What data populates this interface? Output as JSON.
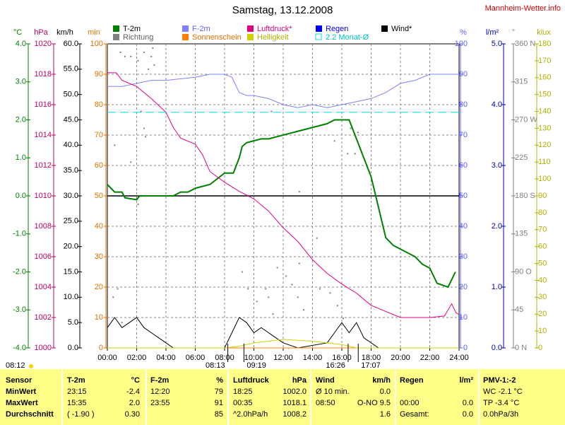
{
  "chart_data": {
    "type": "line",
    "title": "Samstag, 13.12.2008",
    "site": "Mannheim-Wetter.info",
    "xlim": [
      0,
      24
    ],
    "xticks": [
      {
        "value": 0,
        "label": "00:00"
      },
      {
        "value": 2,
        "label": "02:00"
      },
      {
        "value": 4,
        "label": "04:00"
      },
      {
        "value": 6,
        "label": "06:00"
      },
      {
        "value": 8,
        "label": "08:00"
      },
      {
        "value": 10,
        "label": "10:00"
      },
      {
        "value": 12,
        "label": "12:00"
      },
      {
        "value": 14,
        "label": "14:00"
      },
      {
        "value": 16,
        "label": "16:00"
      },
      {
        "value": 18,
        "label": "18:00"
      },
      {
        "value": 20,
        "label": "20:00"
      },
      {
        "value": 22,
        "label": "22:00"
      },
      {
        "value": 24,
        "label": "24:00"
      }
    ],
    "grid": true,
    "axes": [
      {
        "unit": "°C",
        "color": "#008000",
        "lim": [
          -4,
          4
        ],
        "ticks": [
          {
            "value": -4,
            "label": "-4.0"
          },
          {
            "value": -3,
            "label": "-3.0"
          },
          {
            "value": -2,
            "label": "-2.0"
          },
          {
            "value": -1,
            "label": "-1.0"
          },
          {
            "value": 0,
            "label": "0.0"
          },
          {
            "value": 1,
            "label": "1.0"
          },
          {
            "value": 2,
            "label": "2.0"
          },
          {
            "value": 3,
            "label": "3.0"
          },
          {
            "value": 4,
            "label": "4.0"
          }
        ]
      },
      {
        "unit": "hPa",
        "color": "#c00060",
        "lim": [
          1000,
          1020
        ],
        "ticks": [
          1000,
          1002,
          1004,
          1006,
          1008,
          1010,
          1012,
          1014,
          1016,
          1018,
          1020
        ]
      },
      {
        "unit": "km/h",
        "color": "#000000",
        "lim": [
          0,
          60
        ],
        "ticks": [
          {
            "value": 0,
            "label": "0.0"
          },
          {
            "value": 5,
            "label": "5.0"
          },
          {
            "value": 10,
            "label": "10.0"
          },
          {
            "value": 15,
            "label": "15.0"
          },
          {
            "value": 20,
            "label": "20.0"
          },
          {
            "value": 25,
            "label": "25.0"
          },
          {
            "value": 30,
            "label": "30.0"
          },
          {
            "value": 35,
            "label": "35.0"
          },
          {
            "value": 40,
            "label": "40.0"
          },
          {
            "value": 45,
            "label": "45.0"
          },
          {
            "value": 50,
            "label": "50.0"
          },
          {
            "value": 55,
            "label": "55.0"
          },
          {
            "value": 60,
            "label": "60.0"
          }
        ]
      },
      {
        "unit": "min",
        "color": "#e07000",
        "lim": [
          0,
          100
        ],
        "ticks": [
          0,
          10,
          20,
          30,
          40,
          50,
          60,
          70,
          80,
          90,
          100
        ]
      },
      {
        "unit": "%",
        "color": "#6060ff",
        "lim": [
          0,
          100
        ],
        "ticks": [
          0,
          10,
          20,
          30,
          40,
          50,
          60,
          70,
          80,
          90,
          100
        ]
      },
      {
        "unit": "l/m²",
        "color": "#0000c0",
        "lim": [
          0,
          5
        ],
        "ticks": [
          {
            "value": 0,
            "label": "0.0"
          },
          {
            "value": 1,
            "label": "1.0"
          },
          {
            "value": 2,
            "label": "2.0"
          },
          {
            "value": 3,
            "label": "3.0"
          },
          {
            "value": 4,
            "label": "4.0"
          },
          {
            "value": 5,
            "label": "5.0"
          }
        ]
      },
      {
        "unit": "°",
        "color": "#808080",
        "lim": [
          0,
          360
        ],
        "ticks": [
          {
            "value": 0,
            "label": "0 N"
          },
          45,
          {
            "value": 90,
            "label": "90 O"
          },
          135,
          {
            "value": 180,
            "label": "180 S"
          },
          225,
          {
            "value": 270,
            "label": "270 W"
          },
          315,
          {
            "value": 360,
            "label": "360 N"
          }
        ]
      },
      {
        "unit": "klux",
        "color": "#b0b000",
        "lim": [
          0,
          180
        ],
        "ticks": [
          0,
          10,
          20,
          30,
          40,
          50,
          60,
          70,
          80,
          90,
          100,
          110,
          120,
          130,
          140,
          150,
          160,
          170,
          180
        ]
      }
    ],
    "series": [
      {
        "name": "T-2m",
        "color": "#008000",
        "axis": "°C",
        "width": 2,
        "x": [
          0,
          0.25,
          0.5,
          1,
          1.2,
          2,
          2.2,
          4,
          4.5,
          5,
          5.5,
          6,
          7,
          7.5,
          8,
          8.6,
          9,
          9.2,
          9.5,
          10.5,
          11,
          11.5,
          12,
          12.5,
          13,
          14,
          15,
          15.5,
          16.5,
          17,
          17.5,
          18,
          18.5,
          19,
          19.5,
          20,
          21,
          21.5,
          22,
          22.5,
          23.25,
          23.75
        ],
        "values": [
          0.3,
          0.2,
          0.1,
          0.1,
          -0.05,
          -0.1,
          0,
          0,
          0,
          0.1,
          0.1,
          0.2,
          0.3,
          0.45,
          0.6,
          0.6,
          1.0,
          1.3,
          1.4,
          1.5,
          1.5,
          1.55,
          1.6,
          1.65,
          1.7,
          1.8,
          1.9,
          2.0,
          2.0,
          1.5,
          1.0,
          0.5,
          -0.3,
          -1.1,
          -1.3,
          -1.4,
          -1.6,
          -1.8,
          -1.9,
          -2.3,
          -2.4,
          -2.0
        ]
      },
      {
        "name": "F-2m",
        "color": "#8080ff",
        "axis": "%",
        "width": 1,
        "x": [
          0,
          1,
          2,
          3,
          4,
          5,
          6,
          7,
          8,
          8.5,
          9,
          9.5,
          10,
          11,
          12,
          13,
          14,
          15,
          16,
          17,
          18,
          19,
          20,
          21,
          22,
          24
        ],
        "values": [
          86,
          86,
          87,
          88,
          88,
          88.5,
          89,
          90,
          90,
          89,
          84,
          83,
          83,
          82,
          80,
          79,
          80,
          79,
          80,
          81,
          82,
          84,
          87,
          88,
          90,
          90
        ]
      },
      {
        "name": "Luftdruck*",
        "color": "#e0007f",
        "axis": "hPa",
        "width": 1,
        "x": [
          0,
          0.6,
          1,
          2,
          3,
          4,
          4.5,
          5,
          6,
          6.5,
          7,
          8,
          9,
          10,
          11,
          12,
          13,
          14,
          15,
          16,
          17,
          18,
          19,
          20,
          22,
          23,
          23.5,
          23.8,
          24
        ],
        "values": [
          1018.1,
          1018.1,
          1017.6,
          1017.2,
          1016.4,
          1015.5,
          1014.5,
          1013.8,
          1013.4,
          1012.7,
          1011.6,
          1010.9,
          1010.3,
          1009.8,
          1009.0,
          1007.9,
          1007.0,
          1005.8,
          1004.9,
          1004.2,
          1003.6,
          1002.8,
          1002.4,
          1002.0,
          1002.0,
          1002.1,
          1002.9,
          1002.3,
          1002.2
        ]
      },
      {
        "name": "Regen",
        "color": "#0000ff",
        "axis": "l/m²",
        "width": 1,
        "x": [
          0,
          24
        ],
        "values": [
          0,
          0
        ]
      },
      {
        "name": "Wind*",
        "color": "#000000",
        "axis": "km/h",
        "width": 1,
        "x": [
          0,
          0.5,
          1,
          1.5,
          2,
          2.5,
          3,
          3.5,
          4,
          4.5,
          8,
          8.5,
          9,
          9.5,
          10,
          10.5,
          11,
          11.5,
          12,
          12.5,
          13,
          15,
          15.5,
          16,
          16.5,
          17,
          17.5,
          18,
          18.5,
          24
        ],
        "values": [
          4,
          6,
          4,
          5,
          6,
          4,
          3,
          2,
          1,
          0,
          0,
          3,
          6,
          5,
          3,
          4,
          3,
          2,
          1,
          0.5,
          0,
          1,
          3,
          5,
          3,
          5,
          2,
          1,
          0,
          0
        ]
      },
      {
        "name": "Richtung",
        "color": "#808080",
        "axis": "°",
        "style": "dots",
        "x": [
          0.9,
          1.2,
          1.6,
          2.1,
          2.5,
          2.8,
          3.0,
          3.1,
          3.2,
          2.3,
          2.5,
          1.6,
          0.5,
          0.4,
          0.7,
          1.0,
          2.6,
          2.1,
          9.2,
          9.6,
          10.2,
          10.8,
          11.0,
          11.3,
          11.6,
          12.2,
          12.6,
          13.0,
          13.4,
          13.1,
          14.3,
          15.2,
          15.7,
          16.1,
          16.4,
          16.6,
          16.9,
          17.1,
          15.5,
          14.5,
          13.1,
          11.2
        ],
        "values": [
          350,
          345,
          345,
          340,
          350,
          330,
          345,
          355,
          335,
          280,
          260,
          220,
          240,
          60,
          70,
          30,
          250,
          170,
          90,
          70,
          55,
          70,
          60,
          40,
          95,
          85,
          75,
          60,
          45,
          100,
          130,
          65,
          50,
          35,
          230,
          260,
          230,
          255,
          245,
          70,
          185,
          280
        ]
      },
      {
        "name": "Sonnenschein",
        "color": "#ff8000",
        "axis": "min",
        "width": 1,
        "x": [
          0,
          24
        ],
        "values": [
          0,
          0
        ]
      },
      {
        "name": "Helligkeit",
        "color": "#d0d000",
        "axis": "klux",
        "width": 1,
        "x": [
          0,
          8,
          9,
          10,
          12,
          14,
          16,
          17,
          24
        ],
        "values": [
          0,
          0,
          1,
          3,
          5,
          4,
          2,
          0,
          0
        ]
      },
      {
        "name": "2.2 Monat-Ø",
        "color": "#00e0e0",
        "axis": "°C",
        "width": 1,
        "dash": true,
        "x": [
          0,
          24
        ],
        "values": [
          2.2,
          2.2
        ]
      }
    ],
    "sunrise": "08:12",
    "annotations": [
      {
        "x": 8.22,
        "label": "08:13"
      },
      {
        "x": 9.32,
        "label": "09:19"
      },
      {
        "x": 16.43,
        "label": "16:26"
      },
      {
        "x": 17.12,
        "label": "17:07"
      }
    ]
  },
  "table": {
    "header": [
      "Sensor",
      "T-2m",
      "°C",
      "F-2m",
      "%",
      "Luftdruck",
      "hPa",
      "Wind",
      "km/h",
      "Regen",
      "l/m²",
      "PMV-1:-2"
    ],
    "rows": [
      [
        "MinWert",
        "23:15",
        "-2.4",
        "12:20",
        "79",
        "18:25",
        "1002.0",
        "Ø 10 min.",
        "0.0",
        null,
        null,
        "WC -2.1 °C"
      ],
      [
        "MaxWert",
        "15:35",
        "2.0",
        "23:55",
        "91",
        "00:35",
        "1018.1",
        "08:50",
        "O-NO 9.5",
        "00:00",
        "0.0",
        "TP -3.4 °C"
      ],
      [
        "Durchschnitt",
        "( -1.90 )",
        "0.30",
        null,
        "85",
        "^2.0hPa/h",
        "1008.2",
        null,
        "1.6",
        "Gesamt:",
        "0.0",
        "0.0hPa/3h"
      ]
    ]
  }
}
